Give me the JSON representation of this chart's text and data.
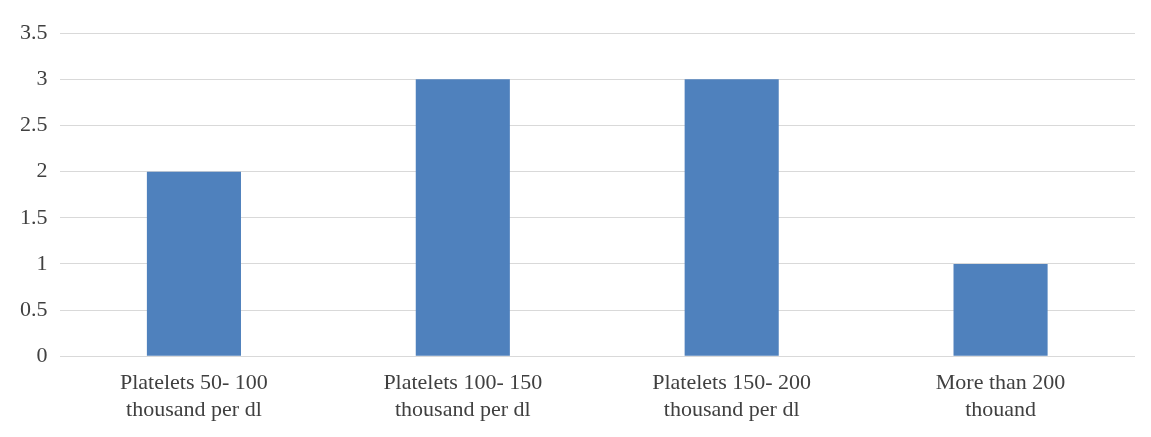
{
  "chart_data": {
    "type": "bar",
    "categories": [
      "Platelets 50- 100 thousand per dl",
      "Platelets 100- 150 thousand per dl",
      "Platelets 150- 200 thousand per dl",
      "More than 200 thouand"
    ],
    "values": [
      2,
      3,
      3,
      1
    ],
    "color": "#4f81bd",
    "ylim": [
      0,
      3.5
    ],
    "yticks": [
      0,
      0.5,
      1,
      1.5,
      2,
      2.5,
      3,
      3.5
    ],
    "grid": "y"
  }
}
